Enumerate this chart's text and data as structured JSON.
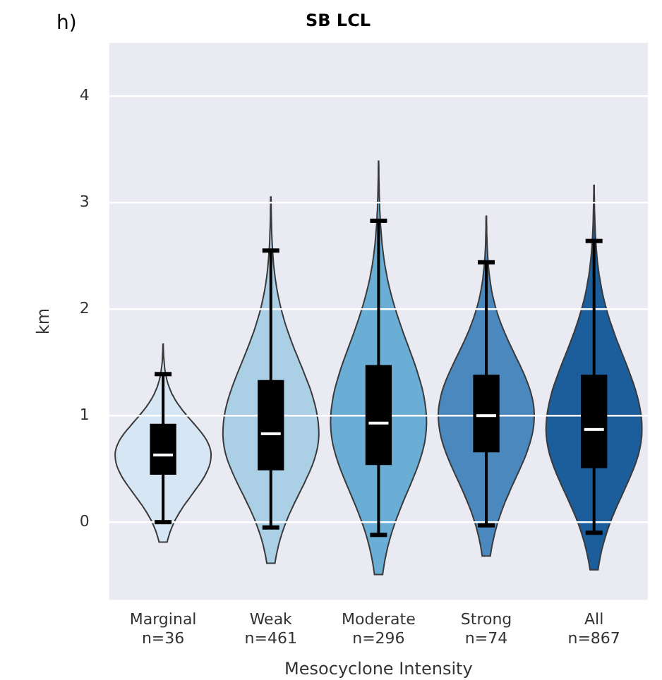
{
  "chart_data": {
    "type": "box",
    "title": "SB LCL",
    "annotations": [
      "h)"
    ],
    "xlabel": "Mesocyclone Intensity",
    "ylabel": "km",
    "categories": [
      "Marginal\nn=36",
      "Weak\nn=461",
      "Moderate\nn=296",
      "Strong\nn=74",
      "All\nn=867"
    ],
    "color": "#000000",
    "boxes": [
      {
        "low": 0,
        "q1": 0.45,
        "median": 0.63,
        "q3": 0.92,
        "high": 1.39
      },
      {
        "low": -0.05,
        "q1": 0.49,
        "median": 0.83,
        "q3": 1.33,
        "high": 2.55
      },
      {
        "low": -0.12,
        "q1": 0.54,
        "median": 0.93,
        "q3": 1.47,
        "high": 2.83
      },
      {
        "low": -0.03,
        "q1": 0.66,
        "median": 1.0,
        "q3": 1.38,
        "high": 2.44
      },
      {
        "low": -0.1,
        "q1": 0.51,
        "median": 0.87,
        "q3": 1.38,
        "high": 2.64
      }
    ],
    "ylim": [
      -0.73,
      4.5
    ],
    "yticks": [
      0,
      1,
      2,
      3,
      4
    ],
    "grid": "y",
    "legend": false
  }
}
